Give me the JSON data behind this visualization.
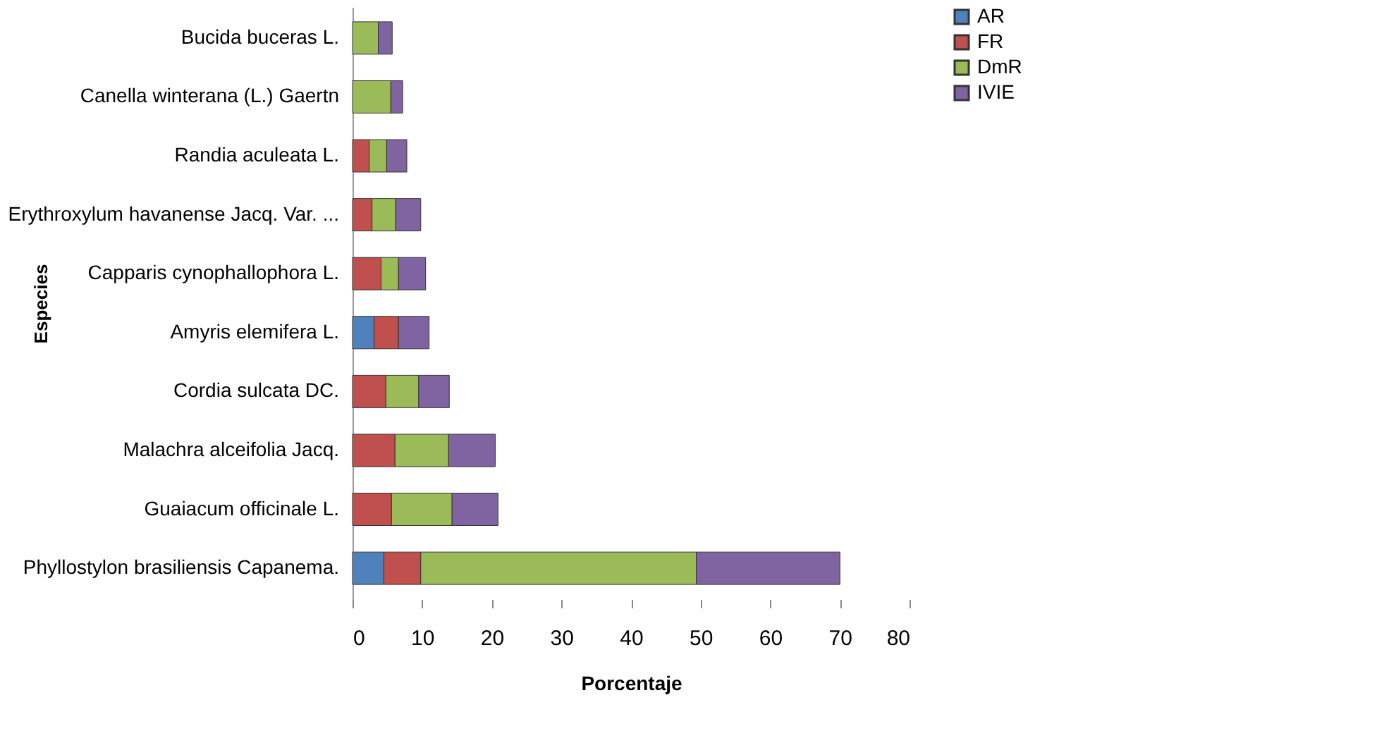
{
  "chart_data": {
    "type": "bar",
    "orientation": "horizontal",
    "stacked": true,
    "xlabel": "Porcentaje",
    "ylabel": "Especies",
    "categories": [
      "Bucida buceras L.",
      "Canella winterana (L.) Gaertn",
      "Randia aculeata L.",
      "Erythroxylum havanense Jacq. Var. ...",
      "Capparis cynophallophora L.",
      "Amyris elemifera L.",
      "Cordia sulcata DC.",
      "Malachra alceifolia Jacq.",
      "Guaiacum officinale L.",
      "Phyllostylon brasiliensis Capanema."
    ],
    "series": [
      {
        "name": "AR",
        "color": "#4f81bd",
        "values": [
          null,
          null,
          null,
          null,
          null,
          3.1,
          null,
          null,
          null,
          4.5
        ]
      },
      {
        "name": "FR",
        "color": "#c0504d",
        "values": [
          null,
          null,
          2.4,
          2.8,
          4.1,
          3.5,
          4.8,
          6.1,
          5.6,
          5.3
        ]
      },
      {
        "name": "DmR",
        "color": "#9bbb59",
        "values": [
          3.7,
          5.5,
          2.5,
          3.4,
          2.5,
          null,
          4.7,
          7.7,
          8.7,
          39.6
        ]
      },
      {
        "name": "IVIE",
        "color": "#8064a2",
        "values": [
          2.0,
          1.7,
          2.9,
          3.6,
          3.9,
          4.4,
          4.4,
          6.7,
          6.6,
          20.6
        ]
      }
    ],
    "xlim": [
      0,
      80
    ],
    "xticks": [
      0,
      10,
      20,
      30,
      40,
      50,
      60,
      70,
      80
    ],
    "grid": false,
    "legend": "right"
  }
}
